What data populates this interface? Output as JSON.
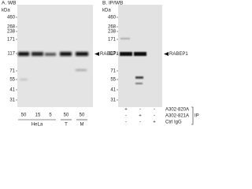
{
  "panels": [
    {
      "title": "A. WB",
      "unit": "kDa",
      "markers": [
        "460",
        "268",
        "238",
        "171",
        "117",
        "71",
        "55",
        "41",
        "31"
      ],
      "target": "RABEP1",
      "lanes": [
        "50",
        "15",
        "5",
        "50",
        "50"
      ],
      "groups": [
        "HeLa",
        "T",
        "M"
      ]
    },
    {
      "title": "B. IP/WB",
      "unit": "kDa",
      "markers": [
        "460",
        "268",
        "238",
        "171",
        "117",
        "71",
        "55",
        "41",
        "31"
      ],
      "target": "RABEP1",
      "rows": [
        {
          "name": "A302-820A",
          "signs": [
            "+",
            "-",
            "-"
          ]
        },
        {
          "name": "A302-821A",
          "signs": [
            "-",
            "+",
            "-"
          ]
        },
        {
          "name": "Ctrl IgG",
          "signs": [
            "-",
            "-",
            "+"
          ]
        }
      ],
      "ip": "IP"
    }
  ]
}
